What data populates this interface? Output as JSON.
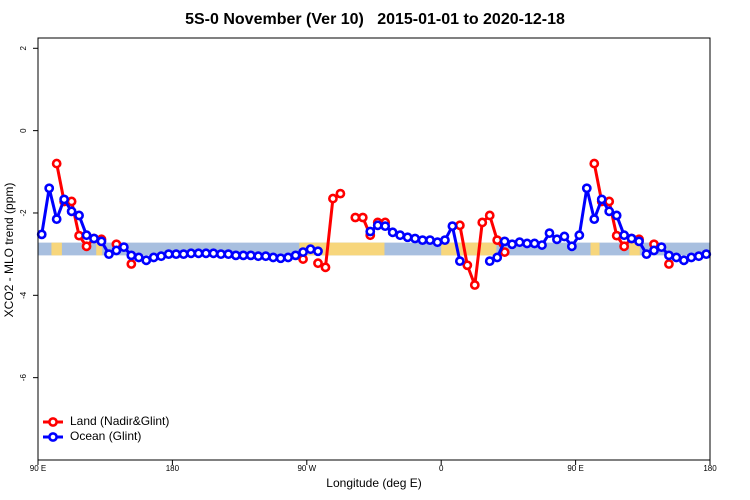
{
  "chart_data": {
    "type": "line",
    "title": "5S-0 November (Ver 10)   2015-01-01 to 2020-12-18",
    "x_label": "Longitude (deg E)",
    "y_label": "XCO2 - MLO trend (ppm)",
    "xlim": [
      90,
      540
    ],
    "ylim": [
      -8,
      2.25
    ],
    "xticks": [
      {
        "value": 90,
        "label": "90 E"
      },
      180,
      {
        "value": 270,
        "label": "90 W"
      },
      {
        "value": 360,
        "label": "0"
      },
      {
        "value": 450,
        "label": "90 E"
      },
      {
        "value": 540,
        "label": "180"
      }
    ],
    "yticks": [
      2,
      0,
      -2,
      -4,
      -6
    ],
    "legend": "bottomleft",
    "band": {
      "ylim": [
        -3.03,
        -2.72
      ],
      "color": "#a8bfdf",
      "land_color": "#f7d67c",
      "land_ranges": [
        [
          99,
          106
        ],
        [
          129,
          133
        ],
        [
          265,
          322
        ],
        [
          360,
          397
        ],
        [
          460,
          466
        ],
        [
          486,
          493
        ]
      ]
    },
    "x": [
      92.5,
      97.5,
      102.5,
      107.5,
      112.5,
      117.5,
      122.5,
      127.5,
      132.5,
      137.5,
      142.5,
      147.5,
      152.5,
      157.5,
      162.5,
      167.5,
      172.5,
      177.5,
      182.5,
      187.5,
      192.5,
      197.5,
      202.5,
      207.5,
      212.5,
      217.5,
      222.5,
      227.5,
      232.5,
      237.5,
      242.5,
      247.5,
      252.5,
      257.5,
      262.5,
      267.5,
      272.5,
      277.5,
      282.5,
      287.5,
      292.5,
      297.5,
      302.5,
      307.5,
      312.5,
      317.5,
      322.5,
      327.5,
      332.5,
      337.5,
      342.5,
      347.5,
      352.5,
      357.5,
      362.5,
      367.5,
      372.5,
      377.5,
      382.5,
      387.5,
      392.5,
      397.5,
      402.5,
      407.5,
      412.5,
      417.5,
      422.5,
      427.5,
      432.5,
      437.5,
      442.5,
      447.5,
      452.5,
      457.5,
      462.5,
      467.5,
      472.5,
      477.5,
      482.5,
      487.5,
      492.5,
      497.5,
      502.5,
      507.5,
      512.5,
      517.5,
      522.5,
      527.5,
      532.5,
      537.5
    ],
    "series": [
      {
        "name": "Land (Nadir&Glint)",
        "color": "#ff0000",
        "values": [
          null,
          null,
          -0.8,
          -1.72,
          -1.72,
          -2.55,
          -2.81,
          -2.62,
          -2.64,
          null,
          -2.76,
          null,
          -3.24,
          null,
          null,
          null,
          null,
          null,
          null,
          null,
          null,
          null,
          null,
          null,
          null,
          null,
          null,
          null,
          null,
          null,
          null,
          null,
          null,
          null,
          null,
          -3.12,
          null,
          -3.22,
          -3.32,
          -1.65,
          -1.53,
          null,
          -2.11,
          -2.11,
          -2.54,
          -2.23,
          -2.23,
          null,
          null,
          null,
          null,
          null,
          null,
          null,
          null,
          null,
          -2.3,
          -3.27,
          -3.75,
          -2.23,
          -2.06,
          -2.66,
          -2.95,
          null,
          null,
          null,
          null,
          null,
          null,
          null,
          null,
          null,
          null,
          null,
          -0.8,
          -1.72,
          -1.72,
          -2.55,
          -2.81,
          -2.62,
          -2.64,
          null,
          -2.76,
          null,
          -3.24,
          null,
          null,
          null,
          null,
          null
        ]
      },
      {
        "name": "Ocean (Glint)",
        "color": "#0000ff",
        "values": [
          -2.52,
          -1.4,
          -2.15,
          -1.67,
          -1.96,
          -2.06,
          -2.54,
          -2.62,
          -2.69,
          -3.0,
          -2.91,
          -2.83,
          -3.03,
          -3.08,
          -3.15,
          -3.08,
          -3.05,
          -3.0,
          -3.0,
          -3.0,
          -2.98,
          -2.98,
          -2.98,
          -2.98,
          -3.0,
          -3.0,
          -3.03,
          -3.03,
          -3.03,
          -3.05,
          -3.05,
          -3.08,
          -3.1,
          -3.08,
          -3.03,
          -2.95,
          -2.88,
          -2.93,
          null,
          null,
          null,
          null,
          null,
          null,
          -2.45,
          -2.3,
          -2.32,
          -2.47,
          -2.54,
          -2.59,
          -2.62,
          -2.66,
          -2.66,
          -2.71,
          -2.66,
          -2.32,
          -3.17,
          null,
          null,
          null,
          -3.17,
          -3.08,
          -2.69,
          -2.76,
          -2.71,
          -2.74,
          -2.74,
          -2.78,
          -2.49,
          -2.64,
          -2.57,
          -2.81,
          -2.54,
          -1.4,
          -2.15,
          -1.67,
          -1.96,
          -2.06,
          -2.54,
          -2.62,
          -2.69,
          -3.0,
          -2.91,
          -2.83,
          -3.03,
          -3.08,
          -3.15,
          -3.08,
          -3.05,
          -3.0
        ]
      }
    ]
  }
}
